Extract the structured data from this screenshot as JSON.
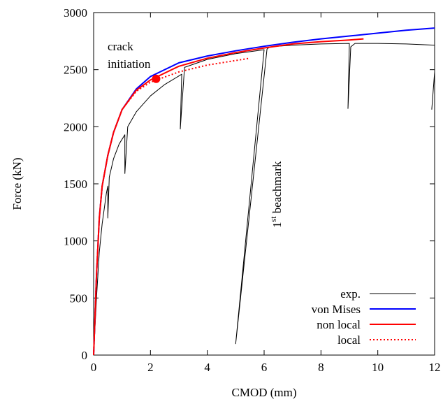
{
  "chart_data": {
    "type": "line",
    "xlabel": "CMOD (mm)",
    "ylabel": "Force (kN)",
    "xlim": [
      0,
      12
    ],
    "ylim": [
      0,
      3000
    ],
    "xticks": [
      0,
      2,
      4,
      6,
      8,
      10,
      12
    ],
    "yticks": [
      0,
      500,
      1000,
      1500,
      2000,
      2500,
      3000
    ],
    "legend_position": "bottom-right",
    "annotations": {
      "crack_line1": "crack",
      "crack_line2": "initiation",
      "crack_point": [
        2.2,
        2420
      ],
      "bench_base": "1",
      "bench_sup": "st",
      "bench_rest": " beachmark"
    },
    "series": [
      {
        "name": "exp.",
        "color": "#000000",
        "style": "solid",
        "points": [
          [
            0,
            0
          ],
          [
            0.1,
            500
          ],
          [
            0.2,
            900
          ],
          [
            0.3,
            1150
          ],
          [
            0.45,
            1420
          ],
          [
            0.5,
            1480
          ],
          [
            0.5,
            1200
          ],
          [
            0.55,
            1560
          ],
          [
            0.7,
            1720
          ],
          [
            0.9,
            1850
          ],
          [
            1.1,
            1930
          ],
          [
            1.1,
            1590
          ],
          [
            1.2,
            2000
          ],
          [
            1.5,
            2130
          ],
          [
            2.0,
            2270
          ],
          [
            2.5,
            2370
          ],
          [
            3.1,
            2460
          ],
          [
            3.05,
            1980
          ],
          [
            3.2,
            2520
          ],
          [
            4.0,
            2590
          ],
          [
            5.0,
            2640
          ],
          [
            6.0,
            2675
          ],
          [
            5.0,
            100
          ],
          [
            6.1,
            2680
          ],
          [
            6.2,
            2700
          ],
          [
            7.0,
            2715
          ],
          [
            8.0,
            2725
          ],
          [
            9.0,
            2730
          ],
          [
            8.95,
            2160
          ],
          [
            9.05,
            2700
          ],
          [
            9.2,
            2730
          ],
          [
            10.0,
            2730
          ],
          [
            11.0,
            2725
          ],
          [
            12.0,
            2715
          ],
          [
            12.0,
            2480
          ],
          [
            11.9,
            2150
          ]
        ]
      },
      {
        "name": "von Mises",
        "color": "#0000ff",
        "style": "solid",
        "points": [
          [
            0,
            0
          ],
          [
            0.1,
            700
          ],
          [
            0.2,
            1200
          ],
          [
            0.3,
            1480
          ],
          [
            0.5,
            1750
          ],
          [
            0.7,
            1950
          ],
          [
            1.0,
            2150
          ],
          [
            1.5,
            2330
          ],
          [
            2.0,
            2440
          ],
          [
            3.0,
            2560
          ],
          [
            4.0,
            2620
          ],
          [
            5.0,
            2665
          ],
          [
            6.0,
            2705
          ],
          [
            7.0,
            2740
          ],
          [
            8.0,
            2770
          ],
          [
            9.0,
            2795
          ],
          [
            10.0,
            2820
          ],
          [
            11.0,
            2845
          ],
          [
            12.0,
            2865
          ]
        ]
      },
      {
        "name": "non local",
        "color": "#ff0000",
        "style": "solid",
        "points": [
          [
            0,
            0
          ],
          [
            0.1,
            700
          ],
          [
            0.2,
            1200
          ],
          [
            0.3,
            1480
          ],
          [
            0.5,
            1750
          ],
          [
            0.7,
            1950
          ],
          [
            1.0,
            2150
          ],
          [
            1.5,
            2320
          ],
          [
            2.0,
            2410
          ],
          [
            3.0,
            2530
          ],
          [
            4.0,
            2600
          ],
          [
            5.0,
            2650
          ],
          [
            6.0,
            2690
          ],
          [
            7.0,
            2725
          ],
          [
            8.0,
            2745
          ],
          [
            9.0,
            2760
          ],
          [
            9.5,
            2770
          ]
        ]
      },
      {
        "name": "local",
        "color": "#ff0000",
        "style": "dotted",
        "points": [
          [
            0,
            0
          ],
          [
            0.1,
            700
          ],
          [
            0.2,
            1200
          ],
          [
            0.3,
            1480
          ],
          [
            0.5,
            1750
          ],
          [
            0.7,
            1950
          ],
          [
            1.0,
            2150
          ],
          [
            1.5,
            2310
          ],
          [
            2.0,
            2390
          ],
          [
            3.0,
            2480
          ],
          [
            4.0,
            2540
          ],
          [
            5.0,
            2580
          ],
          [
            5.5,
            2600
          ]
        ]
      }
    ]
  }
}
